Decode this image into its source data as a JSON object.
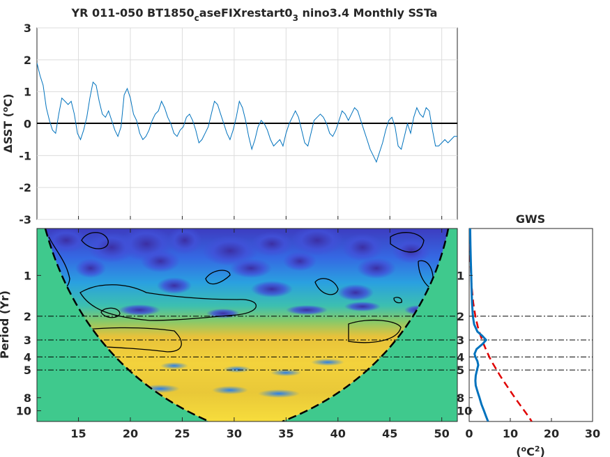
{
  "chart_data": [
    {
      "type": "line",
      "title": "YR 011-050 BT1850",
      "title_sub": "c",
      "title_mid": "aseFIXrestart0",
      "title_sub2": "3",
      "title_end": " nino3.4 Monthly SSTa",
      "ylabel": "ΔSST (",
      "ylabel_sup": "o",
      "ylabel_end": "C)",
      "xlim": [
        11,
        51.5
      ],
      "ylim": [
        -3,
        3
      ],
      "yticks": [
        "3",
        "2",
        "1",
        "0",
        "-1",
        "-2",
        "-3"
      ],
      "grid": true,
      "line_color": "#0072bd",
      "x": [
        11.0,
        11.3,
        11.6,
        11.9,
        12.2,
        12.5,
        12.8,
        13.1,
        13.4,
        13.7,
        14.0,
        14.3,
        14.6,
        14.9,
        15.2,
        15.5,
        15.8,
        16.1,
        16.4,
        16.7,
        17.0,
        17.3,
        17.6,
        17.9,
        18.2,
        18.5,
        18.8,
        19.1,
        19.4,
        19.7,
        20.0,
        20.3,
        20.6,
        20.9,
        21.2,
        21.5,
        21.8,
        22.1,
        22.4,
        22.7,
        23.0,
        23.3,
        23.6,
        23.9,
        24.2,
        24.5,
        24.8,
        25.1,
        25.4,
        25.7,
        26.0,
        26.3,
        26.6,
        26.9,
        27.2,
        27.5,
        27.8,
        28.1,
        28.4,
        28.7,
        29.0,
        29.3,
        29.6,
        29.9,
        30.2,
        30.5,
        30.8,
        31.1,
        31.4,
        31.7,
        32.0,
        32.3,
        32.6,
        32.9,
        33.2,
        33.5,
        33.8,
        34.1,
        34.4,
        34.7,
        35.0,
        35.3,
        35.6,
        35.9,
        36.2,
        36.5,
        36.8,
        37.1,
        37.4,
        37.7,
        38.0,
        38.3,
        38.6,
        38.9,
        39.2,
        39.5,
        39.8,
        40.1,
        40.4,
        40.7,
        41.0,
        41.3,
        41.6,
        41.9,
        42.2,
        42.5,
        42.8,
        43.1,
        43.4,
        43.7,
        44.0,
        44.3,
        44.6,
        44.9,
        45.2,
        45.5,
        45.8,
        46.1,
        46.4,
        46.7,
        47.0,
        47.3,
        47.6,
        47.9,
        48.2,
        48.5,
        48.8,
        49.1,
        49.4,
        49.7,
        50.0,
        50.3,
        50.6,
        50.9,
        51.2,
        51.5
      ],
      "y": [
        1.9,
        1.5,
        1.2,
        0.5,
        0.1,
        -0.2,
        -0.3,
        0.3,
        0.8,
        0.7,
        0.6,
        0.7,
        0.3,
        -0.3,
        -0.5,
        -0.2,
        0.2,
        0.8,
        1.3,
        1.2,
        0.7,
        0.3,
        0.2,
        0.4,
        0.1,
        -0.2,
        -0.4,
        -0.1,
        0.9,
        1.1,
        0.8,
        0.3,
        0.1,
        -0.3,
        -0.5,
        -0.4,
        -0.2,
        0.1,
        0.3,
        0.4,
        0.7,
        0.5,
        0.2,
        0.0,
        -0.3,
        -0.4,
        -0.2,
        -0.1,
        0.2,
        0.3,
        0.1,
        -0.2,
        -0.6,
        -0.5,
        -0.3,
        -0.1,
        0.3,
        0.7,
        0.6,
        0.3,
        0.0,
        -0.3,
        -0.5,
        -0.2,
        0.2,
        0.7,
        0.5,
        0.1,
        -0.4,
        -0.8,
        -0.5,
        -0.1,
        0.1,
        0.0,
        -0.2,
        -0.5,
        -0.7,
        -0.6,
        -0.5,
        -0.7,
        -0.3,
        0.0,
        0.2,
        0.4,
        0.2,
        -0.2,
        -0.6,
        -0.7,
        -0.3,
        0.1,
        0.2,
        0.3,
        0.2,
        0.0,
        -0.3,
        -0.4,
        -0.2,
        0.1,
        0.4,
        0.3,
        0.1,
        0.3,
        0.5,
        0.4,
        0.1,
        -0.2,
        -0.5,
        -0.8,
        -1.0,
        -1.2,
        -0.9,
        -0.6,
        -0.2,
        0.1,
        0.2,
        -0.1,
        -0.7,
        -0.8,
        -0.4,
        0.0,
        -0.3,
        0.2,
        0.5,
        0.3,
        0.2,
        0.5,
        0.4,
        -0.2,
        -0.7,
        -0.7,
        -0.6,
        -0.5,
        -0.6,
        -0.5,
        -0.4,
        -0.4
      ]
    },
    {
      "type": "heatmap",
      "ylabel": "Period (Yr)",
      "xlim": [
        11,
        51.5
      ],
      "xticks": [
        "15",
        "20",
        "25",
        "30",
        "35",
        "40",
        "45",
        "50"
      ],
      "yticks": [
        "1",
        "2",
        "3",
        "4",
        "5",
        "8",
        "10"
      ],
      "period_lines": [
        "2",
        "3",
        "4",
        "5"
      ],
      "coi_color": "#3fc98d"
    },
    {
      "type": "line",
      "title": "GWS",
      "xlabel": "(",
      "xlabel_sup": "o",
      "xlabel_mid": "C",
      "xlabel_sup2": "2",
      "xlabel_end": ")",
      "xticks": [
        "0",
        "10",
        "20",
        "30"
      ],
      "xlim": [
        0,
        30
      ],
      "yticks": [
        "1",
        "2",
        "3",
        "4",
        "5",
        "8",
        "10"
      ],
      "series": [
        {
          "color": "#0072bd",
          "periods": [
            0.4,
            0.6,
            0.8,
            1.0,
            1.3,
            1.6,
            2.0,
            2.3,
            2.6,
            2.8,
            3.0,
            3.2,
            3.5,
            3.8,
            4.0,
            4.3,
            4.6,
            5.0,
            5.5,
            6.0,
            6.5,
            7.0,
            7.5,
            8.0,
            9.0,
            10.0,
            11.0,
            12.0
          ],
          "power": [
            0.2,
            0.3,
            0.4,
            0.5,
            0.6,
            0.7,
            0.9,
            1.2,
            2.0,
            3.2,
            4.1,
            3.3,
            1.8,
            1.3,
            1.5,
            2.0,
            2.2,
            1.9,
            1.6,
            1.5,
            1.6,
            1.9,
            2.2,
            2.5,
            3.0,
            3.6,
            4.1,
            4.6
          ]
        },
        {
          "color": "#e00000",
          "dashed": true,
          "periods": [
            0.4,
            0.8,
            1.2,
            1.6,
            2.0,
            2.4,
            2.8,
            3.2,
            3.6,
            4.0,
            4.5,
            5.0,
            5.5,
            6.0,
            7.0,
            8.0,
            9.0,
            10.0,
            11.0,
            12.0
          ],
          "power": [
            0.1,
            0.3,
            0.6,
            1.0,
            1.5,
            2.1,
            2.8,
            3.5,
            4.2,
            4.9,
            5.8,
            6.7,
            7.5,
            8.3,
            9.8,
            11.1,
            12.3,
            13.4,
            14.4,
            15.2
          ]
        }
      ]
    }
  ]
}
